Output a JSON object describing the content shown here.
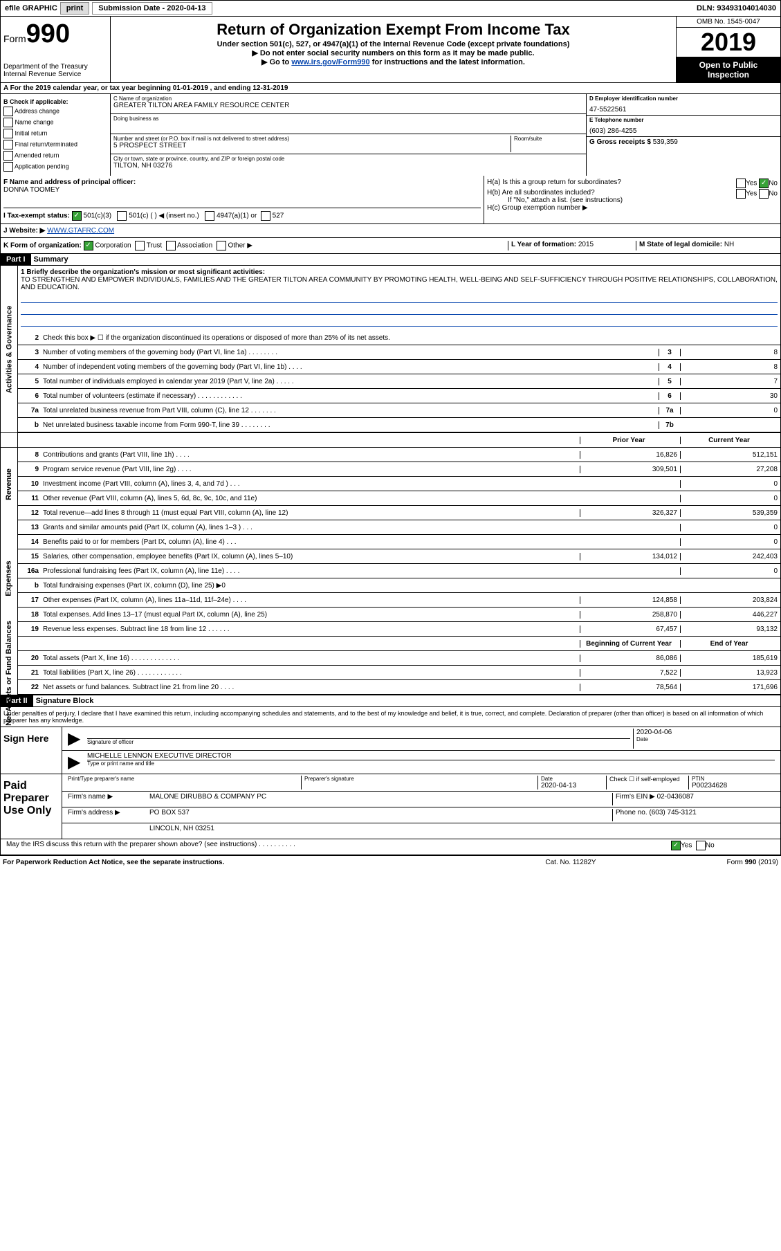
{
  "topbar": {
    "efile": "efile GRAPHIC",
    "print": "print",
    "subdate_label": "Submission Date - 2020-04-13",
    "dln": "DLN: 93493104014030"
  },
  "header": {
    "form_label": "Form",
    "form_number": "990",
    "dept": "Department of the Treasury",
    "irs": "Internal Revenue Service",
    "title": "Return of Organization Exempt From Income Tax",
    "subtitle": "Under section 501(c), 527, or 4947(a)(1) of the Internal Revenue Code (except private foundations)",
    "note1": "▶ Do not enter social security numbers on this form as it may be made public.",
    "note2_pre": "▶ Go to ",
    "note2_link": "www.irs.gov/Form990",
    "note2_post": " for instructions and the latest information.",
    "omb": "OMB No. 1545-0047",
    "year": "2019",
    "inspect": "Open to Public Inspection"
  },
  "rowA": "A For the 2019 calendar year, or tax year beginning 01-01-2019   , and ending 12-31-2019",
  "colB": {
    "header": "B Check if applicable:",
    "items": [
      "Address change",
      "Name change",
      "Initial return",
      "Final return/terminated",
      "Amended return",
      "Application pending"
    ]
  },
  "colC": {
    "name_label": "C Name of organization",
    "name": "GREATER TILTON AREA FAMILY RESOURCE CENTER",
    "dba_label": "Doing business as",
    "dba": "",
    "addr_label": "Number and street (or P.O. box if mail is not delivered to street address)",
    "room_label": "Room/suite",
    "addr": "5 PROSPECT STREET",
    "city_label": "City or town, state or province, country, and ZIP or foreign postal code",
    "city": "TILTON, NH  03276"
  },
  "colDE": {
    "d_label": "D Employer identification number",
    "d_val": "47-5522561",
    "e_label": "E Telephone number",
    "e_val": "(603) 286-4255",
    "g_label": "G Gross receipts $",
    "g_val": "539,359"
  },
  "rowF": {
    "label": "F  Name and address of principal officer:",
    "name": "DONNA TOOMEY"
  },
  "rowH": {
    "ha": "H(a)  Is this a group return for subordinates?",
    "hb": "H(b)  Are all subordinates included?",
    "hb_note": "If \"No,\" attach a list. (see instructions)",
    "hc": "H(c)  Group exemption number ▶",
    "yes": "Yes",
    "no": "No"
  },
  "rowI": {
    "label": "I  Tax-exempt status:",
    "opt1": "501(c)(3)",
    "opt2": "501(c) (  ) ◀ (insert no.)",
    "opt3": "4947(a)(1) or",
    "opt4": "527"
  },
  "rowJ": {
    "label": "J  Website: ▶",
    "val": "WWW.GTAFRC.COM"
  },
  "rowK": {
    "label": "K Form of organization:",
    "corp": "Corporation",
    "trust": "Trust",
    "assoc": "Association",
    "other": "Other ▶",
    "l_label": "L Year of formation:",
    "l_val": "2015",
    "m_label": "M State of legal domicile:",
    "m_val": "NH"
  },
  "part1": {
    "header": "Part I",
    "title": "Summary",
    "line1_label": "1  Briefly describe the organization's mission or most significant activities:",
    "mission": "TO STRENGTHEN AND EMPOWER INDIVIDUALS, FAMILIES AND THE GREATER TILTON AREA COMMUNITY BY PROMOTING HEALTH, WELL-BEING AND SELF-SUFFICIENCY THROUGH POSITIVE RELATIONSHIPS, COLLABORATION, AND EDUCATION.",
    "line2": "Check this box ▶ ☐ if the organization discontinued its operations or disposed of more than 25% of its net assets.",
    "governance": {
      "label": "Activities & Governance",
      "rows": [
        {
          "n": "3",
          "d": "Number of voting members of the governing body (Part VI, line 1a)  .   .   .   .   .   .   .   .",
          "box": "3",
          "v": "8"
        },
        {
          "n": "4",
          "d": "Number of independent voting members of the governing body (Part VI, line 1b)  .   .   .   .",
          "box": "4",
          "v": "8"
        },
        {
          "n": "5",
          "d": "Total number of individuals employed in calendar year 2019 (Part V, line 2a)  .   .   .   .   .",
          "box": "5",
          "v": "7"
        },
        {
          "n": "6",
          "d": "Total number of volunteers (estimate if necessary)   .   .   .   .   .   .   .   .   .   .   .   .",
          "box": "6",
          "v": "30"
        },
        {
          "n": "7a",
          "d": "Total unrelated business revenue from Part VIII, column (C), line 12  .   .   .   .   .   .   .",
          "box": "7a",
          "v": "0"
        },
        {
          "n": "b",
          "d": "Net unrelated business taxable income from Form 990-T, line 39  .   .   .   .   .   .   .   .",
          "box": "7b",
          "v": ""
        }
      ]
    },
    "pycy_header": {
      "prior": "Prior Year",
      "current": "Current Year"
    },
    "revenue": {
      "label": "Revenue",
      "rows": [
        {
          "n": "8",
          "d": "Contributions and grants (Part VIII, line 1h)   .   .   .   .",
          "py": "16,826",
          "cy": "512,151"
        },
        {
          "n": "9",
          "d": "Program service revenue (Part VIII, line 2g)   .   .   .   .",
          "py": "309,501",
          "cy": "27,208"
        },
        {
          "n": "10",
          "d": "Investment income (Part VIII, column (A), lines 3, 4, and 7d )   .   .   .",
          "py": "",
          "cy": "0"
        },
        {
          "n": "11",
          "d": "Other revenue (Part VIII, column (A), lines 5, 6d, 8c, 9c, 10c, and 11e)",
          "py": "",
          "cy": "0"
        },
        {
          "n": "12",
          "d": "Total revenue—add lines 8 through 11 (must equal Part VIII, column (A), line 12)",
          "py": "326,327",
          "cy": "539,359"
        }
      ]
    },
    "expenses": {
      "label": "Expenses",
      "rows": [
        {
          "n": "13",
          "d": "Grants and similar amounts paid (Part IX, column (A), lines 1–3 )  .   .   .",
          "py": "",
          "cy": "0"
        },
        {
          "n": "14",
          "d": "Benefits paid to or for members (Part IX, column (A), line 4)  .   .   .",
          "py": "",
          "cy": "0"
        },
        {
          "n": "15",
          "d": "Salaries, other compensation, employee benefits (Part IX, column (A), lines 5–10)",
          "py": "134,012",
          "cy": "242,403"
        },
        {
          "n": "16a",
          "d": "Professional fundraising fees (Part IX, column (A), line 11e)  .   .   .   .",
          "py": "",
          "cy": "0"
        },
        {
          "n": "b",
          "d": "Total fundraising expenses (Part IX, column (D), line 25) ▶0",
          "py": "shaded",
          "cy": "shaded"
        },
        {
          "n": "17",
          "d": "Other expenses (Part IX, column (A), lines 11a–11d, 11f–24e)  .   .   .   .",
          "py": "124,858",
          "cy": "203,824"
        },
        {
          "n": "18",
          "d": "Total expenses. Add lines 13–17 (must equal Part IX, column (A), line 25)",
          "py": "258,870",
          "cy": "446,227"
        },
        {
          "n": "19",
          "d": "Revenue less expenses. Subtract line 18 from line 12  .   .   .   .   .   .",
          "py": "67,457",
          "cy": "93,132"
        }
      ]
    },
    "netassets": {
      "label": "Net Assets or Fund Balances",
      "header": {
        "begin": "Beginning of Current Year",
        "end": "End of Year"
      },
      "rows": [
        {
          "n": "20",
          "d": "Total assets (Part X, line 16)  .   .   .   .   .   .   .   .   .   .   .   .   .",
          "py": "86,086",
          "cy": "185,619"
        },
        {
          "n": "21",
          "d": "Total liabilities (Part X, line 26)  .   .   .   .   .   .   .   .   .   .   .   .",
          "py": "7,522",
          "cy": "13,923"
        },
        {
          "n": "22",
          "d": "Net assets or fund balances. Subtract line 21 from line 20  .   .   .   .",
          "py": "78,564",
          "cy": "171,696"
        }
      ]
    }
  },
  "part2": {
    "header": "Part II",
    "title": "Signature Block",
    "declare": "Under penalties of perjury, I declare that I have examined this return, including accompanying schedules and statements, and to the best of my knowledge and belief, it is true, correct, and complete. Declaration of preparer (other than officer) is based on all information of which preparer has any knowledge.",
    "sign_here": "Sign Here",
    "sig_officer": "Signature of officer",
    "date_label": "Date",
    "date": "2020-04-06",
    "officer_name": "MICHELLE LENNON  EXECUTIVE DIRECTOR",
    "type_label": "Type or print name and title",
    "paid_label": "Paid Preparer Use Only",
    "prep_name_label": "Print/Type preparer's name",
    "prep_sig_label": "Preparer's signature",
    "prep_date": "2020-04-13",
    "check_self": "Check ☐ if self-employed",
    "ptin_label": "PTIN",
    "ptin": "P00234628",
    "firm_name_label": "Firm's name    ▶",
    "firm_name": "MALONE DIRUBBO & COMPANY PC",
    "firm_ein_label": "Firm's EIN ▶",
    "firm_ein": "02-0436087",
    "firm_addr_label": "Firm's address ▶",
    "firm_addr1": "PO BOX 537",
    "firm_addr2": "LINCOLN, NH  03251",
    "phone_label": "Phone no.",
    "phone": "(603) 745-3121",
    "may_discuss": "May the IRS discuss this return with the preparer shown above? (see instructions)   .   .   .   .   .   .   .   .   .   .",
    "yes": "Yes",
    "no": "No"
  },
  "footer": {
    "left": "For Paperwork Reduction Act Notice, see the separate instructions.",
    "mid": "Cat. No. 11282Y",
    "right": "Form 990 (2019)"
  },
  "colors": {
    "link": "#0645ad",
    "check": "#37a337",
    "black": "#000000",
    "white": "#ffffff",
    "gray": "#cccccc"
  }
}
